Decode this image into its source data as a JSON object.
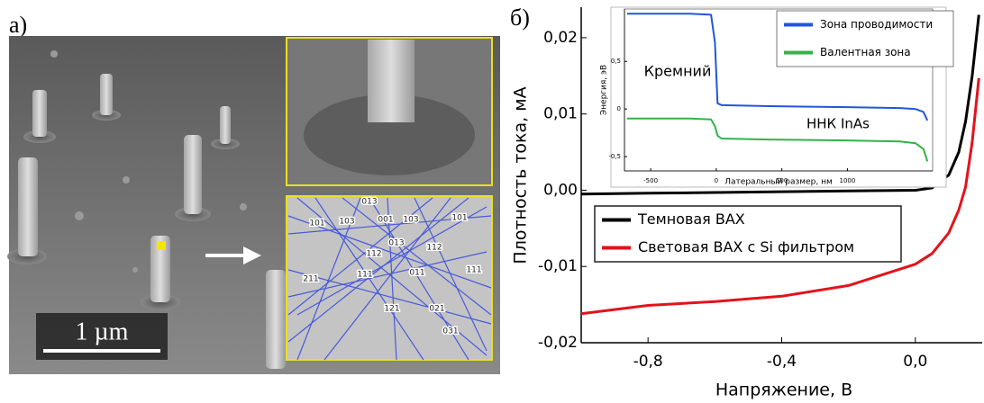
{
  "panel_labels": [
    "а)",
    "б)"
  ],
  "sem_panel": {
    "scale_bar": "1 µm",
    "ebsd_labels": [
      "013",
      "101",
      "103",
      "001",
      "103",
      "101",
      "013",
      "112",
      "112",
      "011",
      "111",
      "211",
      "111",
      "121",
      "021",
      "031"
    ]
  },
  "chart_data": [
    {
      "type": "line",
      "x_label": "Напряжение, В",
      "y_label": "Плотность тока, мА",
      "x": [
        -1.0,
        -0.8,
        -0.6,
        -0.4,
        -0.2,
        0.0,
        0.05,
        0.1,
        0.13,
        0.15,
        0.17,
        0.19
      ],
      "series": [
        {
          "name": "Темновая ВАХ",
          "color": "#000000",
          "values": [
            -0.0005,
            -0.0004,
            -0.0003,
            -0.0002,
            -0.0001,
            0.0,
            0.0003,
            0.002,
            0.005,
            0.009,
            0.015,
            0.023
          ]
        },
        {
          "name": "Световая ВАХ с Si фильтром",
          "color": "#e3131b",
          "values": [
            -0.0162,
            -0.0151,
            -0.0146,
            -0.0139,
            -0.0125,
            -0.0097,
            -0.0083,
            -0.0056,
            -0.0026,
            0.0004,
            0.0063,
            0.0147
          ]
        }
      ],
      "xlim": [
        -1.0,
        0.2
      ],
      "ylim": [
        -0.02,
        0.024
      ],
      "xticks": [
        {
          "value": -0.8,
          "label": "-0,8"
        },
        {
          "value": -0.4,
          "label": "-0,4"
        },
        {
          "value": 0.0,
          "label": "0,0"
        }
      ],
      "yticks": [
        {
          "value": -0.02,
          "label": "-0,02"
        },
        {
          "value": -0.01,
          "label": "-0,01"
        },
        {
          "value": 0.0,
          "label": "0,00"
        },
        {
          "value": 0.01,
          "label": "0,01"
        },
        {
          "value": 0.02,
          "label": "0,02"
        }
      ],
      "legend": "lower-left"
    },
    {
      "type": "line",
      "x_label": "Латеральный размер, нм",
      "y_label": "Энергия, эВ",
      "annotations": [
        "Кремний",
        "ННК InAs"
      ],
      "x": [
        -680,
        -200,
        -40,
        -10,
        10,
        40,
        400,
        1000,
        1400,
        1520,
        1580,
        1610
      ],
      "series": [
        {
          "name": "Зона проводимости",
          "color": "#2255dd",
          "values": [
            1.0,
            1.0,
            0.99,
            0.7,
            0.06,
            0.04,
            0.03,
            0.02,
            0.01,
            0.0,
            -0.03,
            -0.12
          ]
        },
        {
          "name": "Валентная зона",
          "color": "#33b24a",
          "values": [
            -0.1,
            -0.1,
            -0.11,
            -0.18,
            -0.28,
            -0.31,
            -0.32,
            -0.33,
            -0.34,
            -0.36,
            -0.42,
            -0.55
          ]
        }
      ],
      "xlim": [
        -700,
        1650
      ],
      "ylim": [
        -0.65,
        1.05
      ],
      "xticks": [
        -500,
        0,
        500,
        1000
      ],
      "yticks": [
        {
          "value": -0.5,
          "label": "-0,5"
        },
        0,
        {
          "value": 0.5,
          "label": "0,5"
        }
      ],
      "legend": "upper-right"
    }
  ]
}
